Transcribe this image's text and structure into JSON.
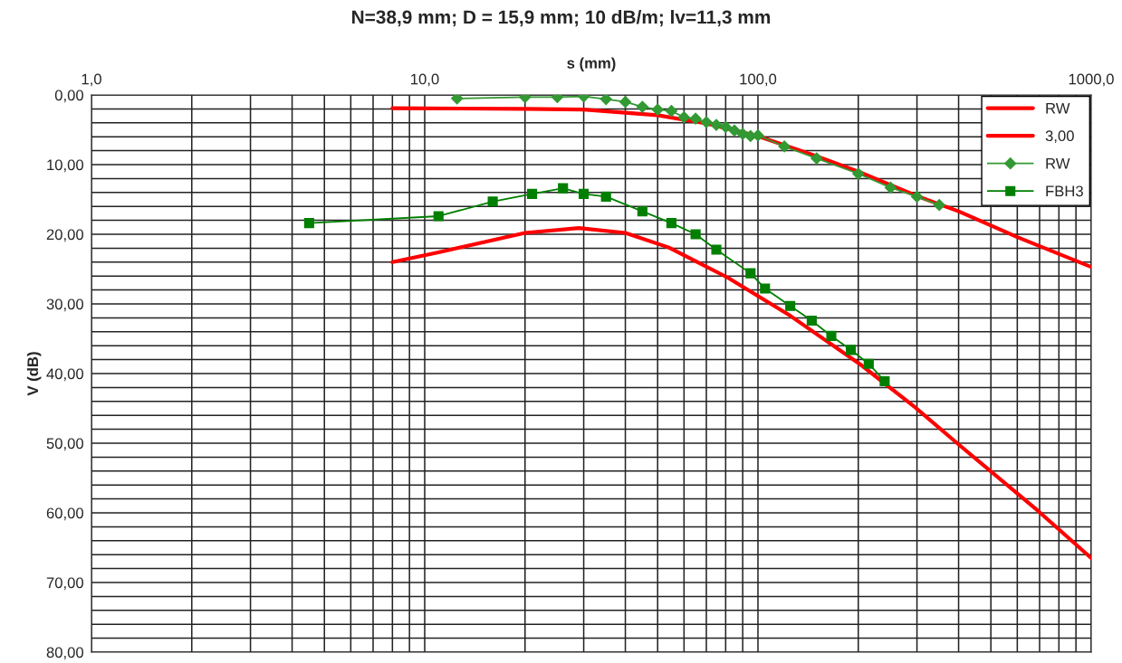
{
  "chart_data": {
    "type": "line",
    "title": "N=38,9 mm; D = 15,9 mm; 10 dB/m; lv=11,3 mm",
    "xlabel": "s (mm)",
    "ylabel": "V (dB)",
    "log": "x",
    "grid": true,
    "legend": "top right",
    "line_style": "solid",
    "xlim": [
      1,
      1000
    ],
    "ylim": [
      80,
      0
    ],
    "xticks": [
      {
        "value": 1,
        "label": "1,0"
      },
      {
        "value": 2,
        "label": null
      },
      {
        "value": 3,
        "label": null
      },
      {
        "value": 4,
        "label": null
      },
      {
        "value": 5,
        "label": null
      },
      {
        "value": 6,
        "label": null
      },
      {
        "value": 7,
        "label": null
      },
      {
        "value": 8,
        "label": null
      },
      {
        "value": 9,
        "label": null
      },
      {
        "value": 10,
        "label": "10,0"
      },
      {
        "value": 20,
        "label": null
      },
      {
        "value": 30,
        "label": null
      },
      {
        "value": 40,
        "label": null
      },
      {
        "value": 50,
        "label": null
      },
      {
        "value": 60,
        "label": null
      },
      {
        "value": 70,
        "label": null
      },
      {
        "value": 80,
        "label": null
      },
      {
        "value": 90,
        "label": null
      },
      {
        "value": 100,
        "label": "100,0"
      },
      {
        "value": 200,
        "label": null
      },
      {
        "value": 300,
        "label": null
      },
      {
        "value": 400,
        "label": null
      },
      {
        "value": 500,
        "label": null
      },
      {
        "value": 600,
        "label": null
      },
      {
        "value": 700,
        "label": null
      },
      {
        "value": 800,
        "label": null
      },
      {
        "value": 900,
        "label": null
      },
      {
        "value": 1000,
        "label": "1000,0"
      }
    ],
    "yticks": [
      {
        "value": 0,
        "label": "0,00"
      },
      {
        "value": 2,
        "label": null
      },
      {
        "value": 4,
        "label": null
      },
      {
        "value": 6,
        "label": null
      },
      {
        "value": 8,
        "label": null
      },
      {
        "value": 10,
        "label": "10,00"
      },
      {
        "value": 12,
        "label": null
      },
      {
        "value": 14,
        "label": null
      },
      {
        "value": 16,
        "label": null
      },
      {
        "value": 18,
        "label": null
      },
      {
        "value": 20,
        "label": "20,00"
      },
      {
        "value": 22,
        "label": null
      },
      {
        "value": 24,
        "label": null
      },
      {
        "value": 26,
        "label": null
      },
      {
        "value": 28,
        "label": null
      },
      {
        "value": 30,
        "label": "30,00"
      },
      {
        "value": 32,
        "label": null
      },
      {
        "value": 34,
        "label": null
      },
      {
        "value": 36,
        "label": null
      },
      {
        "value": 38,
        "label": null
      },
      {
        "value": 40,
        "label": "40,00"
      },
      {
        "value": 42,
        "label": null
      },
      {
        "value": 44,
        "label": null
      },
      {
        "value": 46,
        "label": null
      },
      {
        "value": 48,
        "label": null
      },
      {
        "value": 50,
        "label": "50,00"
      },
      {
        "value": 52,
        "label": null
      },
      {
        "value": 54,
        "label": null
      },
      {
        "value": 56,
        "label": null
      },
      {
        "value": 58,
        "label": null
      },
      {
        "value": 60,
        "label": "60,00"
      },
      {
        "value": 62,
        "label": null
      },
      {
        "value": 64,
        "label": null
      },
      {
        "value": 66,
        "label": null
      },
      {
        "value": 68,
        "label": null
      },
      {
        "value": 70,
        "label": "70,00"
      },
      {
        "value": 72,
        "label": null
      },
      {
        "value": 74,
        "label": null
      },
      {
        "value": 76,
        "label": null
      },
      {
        "value": 78,
        "label": null
      },
      {
        "value": 80,
        "label": "80,00"
      }
    ],
    "series": [
      {
        "name": "RW",
        "color": "#ff0000",
        "marker": "none",
        "x": [
          8,
          20,
          30,
          50,
          70,
          100,
          150,
          200,
          300,
          400,
          600,
          1000
        ],
        "values": [
          1.9,
          2.0,
          2.1,
          2.9,
          4.1,
          5.9,
          8.8,
          11.0,
          14.5,
          16.7,
          20.4,
          24.7
        ]
      },
      {
        "name": "3,00",
        "color": "#ff0000",
        "marker": "none",
        "x": [
          8,
          11,
          20,
          29,
          40,
          54,
          81,
          125,
          203,
          297,
          396,
          692,
          1000
        ],
        "values": [
          24.0,
          22.6,
          19.8,
          19.1,
          19.8,
          21.9,
          26.2,
          31.7,
          38.7,
          44.9,
          50.0,
          59.7,
          66.5
        ]
      },
      {
        "name": "RW",
        "color": "#339933",
        "marker": "diamond",
        "x": [
          12.5,
          20,
          25,
          30,
          35,
          40,
          45,
          50,
          55,
          60,
          65,
          70,
          75,
          80,
          85,
          90,
          95,
          100,
          120,
          150,
          200,
          250,
          300,
          350
        ],
        "values": [
          0.5,
          0.3,
          0.3,
          0.2,
          0.6,
          1.0,
          1.7,
          2.1,
          2.3,
          3.2,
          3.4,
          3.9,
          4.3,
          4.6,
          5.1,
          5.6,
          5.9,
          5.8,
          7.4,
          9.1,
          11.3,
          13.3,
          14.6,
          15.8
        ]
      },
      {
        "name": "FBH3",
        "color": "#007f00",
        "marker": "square",
        "x": [
          4.5,
          11,
          16,
          21,
          26,
          30,
          35,
          45,
          55,
          65,
          75,
          95,
          105,
          125,
          145,
          166,
          190,
          215,
          240
        ],
        "values": [
          18.4,
          17.4,
          15.3,
          14.2,
          13.4,
          14.2,
          14.6,
          16.7,
          18.4,
          20.0,
          22.2,
          25.6,
          27.8,
          30.3,
          32.4,
          34.6,
          36.6,
          38.6,
          41.1
        ]
      }
    ]
  }
}
